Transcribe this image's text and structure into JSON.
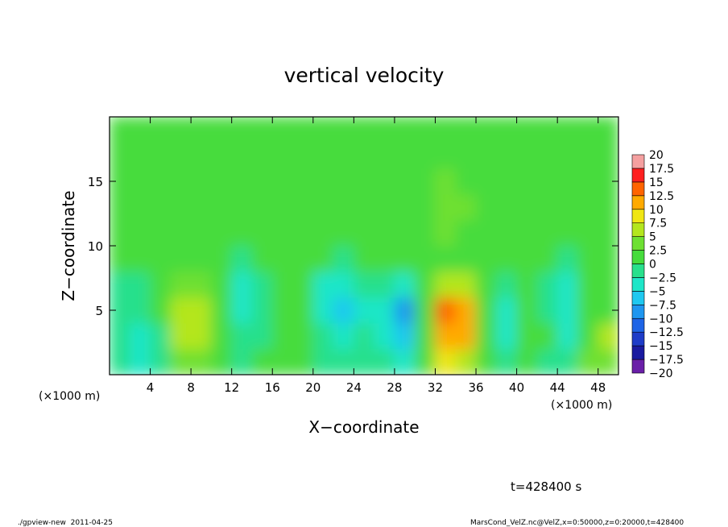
{
  "chart_data": {
    "type": "heatmap",
    "title": "vertical velocity",
    "xlabel": "X−coordinate",
    "ylabel": "Z−coordinate",
    "x_unit": "(×1000 m)",
    "x_unit_right": "(×1000 m)",
    "time_label": "t=428400 s",
    "footer_left": "./gpview-new  2011-04-25",
    "footer_right": "MarsCond_VelZ.nc@VelZ,x=0:50000,z=0:20000,t=428400",
    "xlim": [
      0,
      50
    ],
    "ylim": [
      0,
      20
    ],
    "xticks": [
      4,
      8,
      12,
      16,
      20,
      24,
      28,
      32,
      36,
      40,
      44,
      48
    ],
    "yticks": [
      5,
      10,
      15
    ],
    "x": [
      1,
      3,
      5,
      7,
      9,
      11,
      13,
      15,
      17,
      19,
      21,
      23,
      25,
      27,
      29,
      31,
      33,
      35,
      37,
      39,
      41,
      43,
      45,
      47,
      49
    ],
    "y": [
      1,
      3,
      5,
      7,
      9,
      11,
      13,
      15,
      17,
      19
    ],
    "z": [
      [
        -2,
        -3,
        -1,
        3,
        4,
        0,
        -1,
        0,
        1,
        0,
        -1,
        -2,
        -1,
        -2,
        -3,
        0,
        8,
        6,
        0,
        -2,
        0,
        -1,
        -2,
        3,
        4
      ],
      [
        -2,
        -3,
        -1,
        5,
        6,
        1,
        -2,
        -1,
        1,
        0,
        -2,
        -3,
        -2,
        -3,
        -7,
        0,
        12,
        10,
        1,
        -3,
        1,
        0,
        -3,
        2,
        5
      ],
      [
        -1,
        -2,
        0,
        6,
        7,
        1,
        -3,
        -2,
        0,
        0,
        -4,
        -6,
        -3,
        -4,
        -10,
        0,
        13,
        11,
        1,
        -3,
        2,
        -1,
        -5,
        1,
        2
      ],
      [
        -1,
        -1,
        0,
        4,
        4,
        1,
        -5,
        -2,
        0,
        2,
        -3,
        -5,
        -2,
        -2,
        -4,
        0,
        7,
        5,
        0,
        -2,
        1,
        -2,
        -4,
        0,
        1
      ],
      [
        0,
        0,
        0,
        1,
        1,
        0,
        -1,
        0,
        1,
        1,
        0,
        -1,
        0,
        0,
        0,
        1,
        2,
        2,
        2,
        0,
        0,
        0,
        -1,
        0,
        0
      ],
      [
        1,
        1,
        1,
        1,
        1,
        1,
        0,
        1,
        1,
        1,
        1,
        0,
        1,
        1,
        1,
        2,
        3,
        2,
        2,
        1,
        1,
        1,
        1,
        1,
        1
      ],
      [
        1,
        1,
        1,
        1,
        1,
        1,
        1,
        1,
        1,
        1,
        1,
        1,
        1,
        1,
        1,
        2,
        3,
        3,
        2,
        1,
        1,
        1,
        1,
        1,
        1
      ],
      [
        1,
        1,
        1,
        1,
        1,
        1,
        1,
        1,
        1,
        1,
        1,
        1,
        1,
        1,
        1,
        2,
        3,
        2,
        2,
        1,
        1,
        1,
        1,
        1,
        1
      ],
      [
        1,
        1,
        1,
        1,
        1,
        1,
        1,
        1,
        1,
        1,
        1,
        1,
        1,
        1,
        1,
        2,
        2,
        2,
        2,
        1,
        1,
        1,
        1,
        1,
        1
      ],
      [
        1,
        1,
        1,
        1,
        1,
        1,
        1,
        1,
        1,
        1,
        1,
        1,
        1,
        1,
        1,
        1,
        2,
        2,
        1,
        1,
        1,
        1,
        1,
        1,
        1
      ]
    ],
    "colorbar_ticks": [
      {
        "value": -20,
        "label": "−20"
      },
      {
        "value": -17.5,
        "label": "−17.5"
      },
      {
        "value": -15,
        "label": "−15"
      },
      {
        "value": -12.5,
        "label": "−12.5"
      },
      {
        "value": -10,
        "label": "−10"
      },
      {
        "value": -7.5,
        "label": "−7.5"
      },
      {
        "value": -5,
        "label": "−5"
      },
      {
        "value": -2.5,
        "label": "−2.5"
      },
      0,
      2.5,
      5,
      7.5,
      10,
      12.5,
      15,
      17.5,
      20
    ],
    "colors": [
      "#6a1fa8",
      "#1a1aa0",
      "#1e3cc8",
      "#1e64e6",
      "#1e96f0",
      "#1ec8f0",
      "#1ee6c8",
      "#28e08c",
      "#46dc3c",
      "#6ee032",
      "#b4e61e",
      "#f0e614",
      "#ffaa00",
      "#ff6400",
      "#ff2020",
      "#f5a0a0"
    ]
  }
}
